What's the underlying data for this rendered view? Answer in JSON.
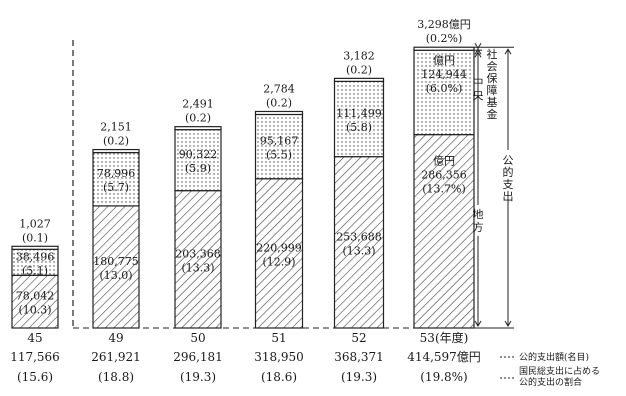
{
  "chart_data": {
    "type": "bar",
    "stacked": true,
    "categories": [
      "45",
      "49",
      "50",
      "51",
      "52",
      "53"
    ],
    "year_unit": "(年度)",
    "series": [
      {
        "key": "local",
        "values": [
          78042,
          180775,
          203368,
          220999,
          253688,
          286356
        ],
        "ratios": [
          "10.3",
          "13.0",
          "13.3",
          "12.9",
          "13.3",
          "13.7%"
        ],
        "pattern": "hatch"
      },
      {
        "key": "central",
        "values": [
          38496,
          78996,
          90322,
          95167,
          111499,
          124944
        ],
        "ratios": [
          "5.1",
          "5.7",
          "5.9",
          "5.5",
          "5.8",
          "6.0%"
        ],
        "pattern": "dots"
      },
      {
        "key": "social_security_fund",
        "values": [
          1027,
          2151,
          2491,
          2784,
          3182,
          3298
        ],
        "ratios": [
          "0.1",
          "0.2",
          "0.2",
          "0.2",
          "0.2",
          "0.2%"
        ],
        "pattern": "white"
      }
    ],
    "value_labels": {
      "local": [
        "78,042",
        "180,775",
        "203,368",
        "220,999",
        "253,688",
        "286,356"
      ],
      "central": [
        "38,496",
        "78,996",
        "90,322",
        "95,167",
        "111,499",
        "124,944"
      ],
      "social_security_fund": [
        "1,027",
        "2,151",
        "2,491",
        "2,784",
        "3,182",
        "3,298億円"
      ]
    },
    "unit_labels": {
      "local": "億円",
      "central": "億円"
    },
    "totals": [
      "117,566",
      "261,921",
      "296,181",
      "318,950",
      "368,371",
      "414,597億円"
    ],
    "total_ratios": [
      "(15.6)",
      "(18.8)",
      "(19.3)",
      "(18.6)",
      "(19.3)",
      "(19.8%)"
    ],
    "bracket_labels": {
      "social_security_fund": "社会保障基金",
      "central": "中央",
      "local": "地方",
      "public_spending": "公的支出"
    },
    "legend": {
      "total_line": "公的支出額(名目)",
      "ratio_line_1": "国民総支出に占める",
      "ratio_line_2": "公的支出の割合"
    },
    "ylim": [
      0,
      420000
    ]
  }
}
